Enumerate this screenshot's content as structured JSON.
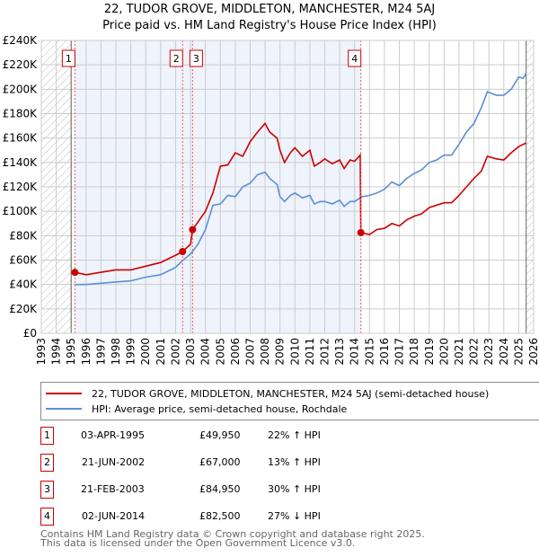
{
  "title": "22, TUDOR GROVE, MIDDLETON, MANCHESTER, M24 5AJ",
  "subtitle": "Price paid vs. HM Land Registry's House Price Index (HPI)",
  "chart_data": {
    "type": "line",
    "ylim": [
      0,
      240000
    ],
    "xlim": [
      1993,
      2026
    ],
    "yticks": [
      0,
      20000,
      40000,
      60000,
      80000,
      100000,
      120000,
      140000,
      160000,
      180000,
      200000,
      220000,
      240000
    ],
    "ytick_labels": [
      "£0",
      "£20K",
      "£40K",
      "£60K",
      "£80K",
      "£100K",
      "£120K",
      "£140K",
      "£160K",
      "£180K",
      "£200K",
      "£220K",
      "£240K"
    ],
    "xticks": [
      1993,
      1994,
      1995,
      1996,
      1997,
      1998,
      1999,
      2000,
      2001,
      2002,
      2003,
      2004,
      2005,
      2006,
      2007,
      2008,
      2009,
      2010,
      2011,
      2012,
      2013,
      2014,
      2015,
      2016,
      2017,
      2018,
      2019,
      2020,
      2021,
      2022,
      2023,
      2024,
      2025,
      2026
    ],
    "grid": true,
    "series": [
      {
        "name": "22, TUDOR GROVE, MIDDLETON, MANCHESTER, M24 5AJ (semi-detached house)",
        "color": "#cc0000",
        "x": [
          1995.25,
          1996,
          1997,
          1998,
          1999,
          2000,
          2001,
          2002,
          2002.47,
          2003,
          2003.14,
          2004,
          2004.5,
          2005,
          2005.5,
          2006,
          2006.5,
          2007,
          2007.5,
          2008,
          2008.3,
          2008.8,
          2009,
          2009.3,
          2009.7,
          2010,
          2010.5,
          2011,
          2011.3,
          2011.7,
          2012,
          2012.5,
          2013,
          2013.3,
          2013.7,
          2014,
          2014.38,
          2014.42,
          2015,
          2015.5,
          2016,
          2016.5,
          2017,
          2017.5,
          2018,
          2018.5,
          2019,
          2019.5,
          2020,
          2020.5,
          2021,
          2021.5,
          2022,
          2022.5,
          2022.9,
          2023.5,
          2024,
          2024.5,
          2025,
          2025.5
        ],
        "y": [
          49950,
          48000,
          50000,
          52000,
          52000,
          55000,
          58000,
          64000,
          67000,
          73000,
          84950,
          100000,
          115000,
          137000,
          138000,
          148000,
          145000,
          157000,
          165000,
          172000,
          165000,
          160000,
          150000,
          140000,
          148000,
          152000,
          145000,
          150000,
          137000,
          140000,
          143000,
          139000,
          142000,
          135000,
          142000,
          141000,
          146000,
          82500,
          81000,
          85000,
          86000,
          90000,
          88000,
          93000,
          96000,
          98000,
          103000,
          105000,
          107000,
          107000,
          113000,
          120000,
          127000,
          133000,
          145000,
          143000,
          142000,
          148000,
          153000,
          156000
        ]
      },
      {
        "name": "HPI: Average price, semi-detached house, Rochdale",
        "color": "#5b8fd6",
        "x": [
          1995.25,
          1996,
          1997,
          1998,
          1999,
          2000,
          2001,
          2002,
          2002.5,
          2003,
          2003.5,
          2004,
          2004.5,
          2005,
          2005.5,
          2006,
          2006.5,
          2007,
          2007.5,
          2008,
          2008.3,
          2008.8,
          2009,
          2009.3,
          2009.7,
          2010,
          2010.5,
          2011,
          2011.3,
          2011.7,
          2012,
          2012.5,
          2013,
          2013.3,
          2013.7,
          2014,
          2014.5,
          2015,
          2015.5,
          2016,
          2016.5,
          2017,
          2017.5,
          2018,
          2018.5,
          2019,
          2019.5,
          2020,
          2020.5,
          2021,
          2021.5,
          2022,
          2022.5,
          2022.9,
          2023.5,
          2024,
          2024.5,
          2025,
          2025.3,
          2025.5
        ],
        "y": [
          40000,
          40000,
          41000,
          42000,
          43000,
          46000,
          48000,
          54000,
          60000,
          65000,
          73000,
          85000,
          105000,
          106000,
          113000,
          112000,
          120000,
          123000,
          130000,
          132000,
          127000,
          122000,
          112000,
          108000,
          113000,
          115000,
          111000,
          113000,
          106000,
          108000,
          108000,
          106000,
          109000,
          104000,
          108000,
          108000,
          112000,
          113000,
          115000,
          118000,
          124000,
          121000,
          127000,
          131000,
          134000,
          140000,
          142000,
          146000,
          146000,
          155000,
          165000,
          172000,
          185000,
          198000,
          195000,
          195000,
          200000,
          210000,
          209000,
          213000
        ]
      }
    ],
    "sales": [
      {
        "label": "1",
        "date": "03-APR-1995",
        "x": 1995.25,
        "price": "£49,950",
        "value": 49950,
        "hpi": "22% ↑ HPI"
      },
      {
        "label": "2",
        "date": "21-JUN-2002",
        "x": 2002.47,
        "price": "£67,000",
        "value": 67000,
        "hpi": "13% ↑ HPI"
      },
      {
        "label": "3",
        "date": "21-FEB-2003",
        "x": 2003.14,
        "price": "£84,950",
        "value": 84950,
        "hpi": "30% ↑ HPI"
      },
      {
        "label": "4",
        "date": "02-JUN-2014",
        "x": 2014.42,
        "price": "£82,500",
        "value": 82500,
        "hpi": "27% ↓ HPI"
      }
    ],
    "legend_position": "below"
  },
  "legend": {
    "red": "22, TUDOR GROVE, MIDDLETON, MANCHESTER, M24 5AJ (semi-detached house)",
    "blue": "HPI: Average price, semi-detached house, Rochdale"
  },
  "footer": {
    "line1": "Contains HM Land Registry data © Crown copyright and database right 2025.",
    "line2": "This data is licensed under the Open Government Licence v3.0."
  }
}
